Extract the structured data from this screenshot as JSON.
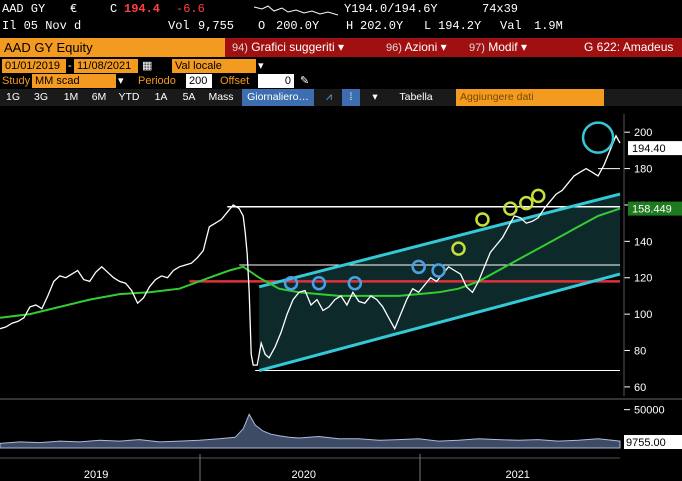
{
  "quote": {
    "ticker": "AAD GY",
    "currency": "€",
    "close_flag": "C",
    "last_price": "194.4",
    "change": "-6.6",
    "trade_date": "Il 05 Nov d",
    "volume_label": "Vol",
    "volume": "9,755",
    "open_label": "O",
    "open": "200.0Y",
    "high_label": "H",
    "high": "202.0Y",
    "low_label": "L",
    "low": "194.2Y",
    "value_label": "Val",
    "value": "1.9M",
    "bid_ask": "Y194.0/194.6Y",
    "size": "74x39"
  },
  "title_bar": {
    "security": "AAD GY Equity",
    "menus": [
      {
        "num": "94)",
        "label": "Grafici suggeriti"
      },
      {
        "num": "96)",
        "label": "Azioni"
      },
      {
        "num": "97)",
        "label": "Modif"
      }
    ],
    "page_id": "G 622: Amadeus"
  },
  "options": {
    "date_from": "01/01/2019",
    "date_to": "11/08/2021",
    "currency_select": "Val locale",
    "study_label": "Study",
    "study_value": "MM scad",
    "period_label": "Periodo",
    "period_value": "200",
    "offset_label": "Offset",
    "offset_value": "0"
  },
  "tabs": {
    "ranges": [
      "1G",
      "3G",
      "1M",
      "6M",
      "YTD",
      "1A",
      "5A",
      "Mass"
    ],
    "frequency": "Giornaliero",
    "table_label": "Tabella",
    "add_data_placeholder": "Aggiungere dati"
  },
  "colors": {
    "price": "#ffffff",
    "moving_average": "#33cc33",
    "channel": "#33c9d6",
    "support": "#e0303a",
    "volume": "#aabbdd",
    "brand_orange": "#f39a21"
  },
  "chart_data": {
    "type": "line",
    "y_ticks": [
      "200",
      "180",
      "160",
      "140",
      "120",
      "100",
      "80",
      "60"
    ],
    "price_last_label": "194.40",
    "ma_last_label": "158.449",
    "volume_ticks": [
      "50000"
    ],
    "volume_last_label": "9755.00",
    "x_labels": [
      "2019",
      "2020",
      "2021"
    ],
    "ylim": [
      55,
      210
    ],
    "series": [
      {
        "key": "price",
        "values": [
          [
            0,
            92
          ],
          [
            3,
            93
          ],
          [
            6,
            95
          ],
          [
            9,
            96
          ],
          [
            12,
            98
          ],
          [
            15,
            104
          ],
          [
            18,
            105
          ],
          [
            21,
            103
          ],
          [
            24,
            110
          ],
          [
            27,
            118
          ],
          [
            30,
            121
          ],
          [
            33,
            120
          ],
          [
            36,
            122
          ],
          [
            39,
            124
          ],
          [
            42,
            119
          ],
          [
            45,
            118
          ],
          [
            48,
            123
          ],
          [
            51,
            126
          ],
          [
            54,
            123
          ],
          [
            57,
            120
          ],
          [
            60,
            118
          ],
          [
            63,
            117
          ],
          [
            66,
            113
          ],
          [
            69,
            106
          ],
          [
            72,
            109
          ],
          [
            75,
            115
          ],
          [
            78,
            119
          ],
          [
            81,
            121
          ],
          [
            84,
            120
          ],
          [
            87,
            124
          ],
          [
            90,
            126
          ],
          [
            93,
            127
          ],
          [
            96,
            128
          ],
          [
            99,
            131
          ],
          [
            102,
            135
          ],
          [
            105,
            148
          ],
          [
            108,
            150
          ],
          [
            111,
            152
          ],
          [
            114,
            156
          ],
          [
            117,
            160
          ],
          [
            120,
            158
          ],
          [
            122,
            154
          ],
          [
            123,
            145
          ],
          [
            124,
            133
          ],
          [
            125,
            112
          ],
          [
            126,
            78
          ],
          [
            127,
            72
          ],
          [
            129,
            72
          ],
          [
            131,
            84
          ],
          [
            133,
            78
          ],
          [
            135,
            76
          ],
          [
            138,
            82
          ],
          [
            141,
            90
          ],
          [
            144,
            100
          ],
          [
            147,
            108
          ],
          [
            150,
            112
          ],
          [
            153,
            113
          ],
          [
            156,
            105
          ],
          [
            159,
            108
          ],
          [
            162,
            102
          ],
          [
            165,
            104
          ],
          [
            168,
            108
          ],
          [
            171,
            110
          ],
          [
            174,
            105
          ],
          [
            177,
            112
          ],
          [
            180,
            107
          ],
          [
            183,
            106
          ],
          [
            186,
            110
          ],
          [
            189,
            108
          ],
          [
            192,
            104
          ],
          [
            195,
            98
          ],
          [
            198,
            92
          ],
          [
            201,
            100
          ],
          [
            204,
            108
          ],
          [
            207,
            114
          ],
          [
            210,
            112
          ],
          [
            213,
            116
          ],
          [
            216,
            120
          ],
          [
            219,
            118
          ],
          [
            222,
            122
          ],
          [
            225,
            126
          ],
          [
            228,
            124
          ],
          [
            231,
            122
          ],
          [
            234,
            115
          ],
          [
            237,
            112
          ],
          [
            240,
            118
          ],
          [
            243,
            126
          ],
          [
            246,
            134
          ],
          [
            249,
            138
          ],
          [
            252,
            142
          ],
          [
            255,
            148
          ],
          [
            258,
            154
          ],
          [
            261,
            153
          ],
          [
            264,
            150
          ],
          [
            267,
            151
          ],
          [
            270,
            153
          ],
          [
            273,
            158
          ],
          [
            276,
            162
          ],
          [
            279,
            166
          ],
          [
            282,
            168
          ],
          [
            285,
            172
          ],
          [
            288,
            176
          ],
          [
            291,
            178
          ],
          [
            294,
            180
          ],
          [
            297,
            178
          ],
          [
            300,
            176
          ],
          [
            303,
            182
          ],
          [
            306,
            190
          ],
          [
            309,
            198
          ],
          [
            311,
            194
          ]
        ]
      },
      {
        "key": "ma",
        "values": [
          [
            0,
            98
          ],
          [
            15,
            100
          ],
          [
            30,
            104
          ],
          [
            45,
            108
          ],
          [
            60,
            111
          ],
          [
            75,
            112
          ],
          [
            90,
            114
          ],
          [
            105,
            120
          ],
          [
            115,
            124
          ],
          [
            122,
            126
          ],
          [
            130,
            120
          ],
          [
            140,
            114
          ],
          [
            150,
            112
          ],
          [
            160,
            111
          ],
          [
            170,
            110
          ],
          [
            180,
            110
          ],
          [
            190,
            110
          ],
          [
            200,
            110
          ],
          [
            210,
            111
          ],
          [
            220,
            112
          ],
          [
            230,
            114
          ],
          [
            240,
            118
          ],
          [
            250,
            124
          ],
          [
            260,
            130
          ],
          [
            270,
            136
          ],
          [
            280,
            142
          ],
          [
            290,
            148
          ],
          [
            300,
            154
          ],
          [
            311,
            158
          ]
        ]
      },
      {
        "key": "volume",
        "values": [
          [
            0,
            6
          ],
          [
            10,
            8
          ],
          [
            20,
            7
          ],
          [
            30,
            9
          ],
          [
            40,
            8
          ],
          [
            50,
            10
          ],
          [
            60,
            9
          ],
          [
            70,
            11
          ],
          [
            80,
            8
          ],
          [
            90,
            9
          ],
          [
            100,
            10
          ],
          [
            110,
            12
          ],
          [
            118,
            14
          ],
          [
            122,
            25
          ],
          [
            125,
            44
          ],
          [
            128,
            30
          ],
          [
            132,
            22
          ],
          [
            136,
            18
          ],
          [
            140,
            16
          ],
          [
            145,
            14
          ],
          [
            150,
            13
          ],
          [
            160,
            15
          ],
          [
            170,
            12
          ],
          [
            180,
            12
          ],
          [
            190,
            10
          ],
          [
            200,
            11
          ],
          [
            210,
            12
          ],
          [
            220,
            9
          ],
          [
            230,
            10
          ],
          [
            240,
            12
          ],
          [
            250,
            11
          ],
          [
            260,
            10
          ],
          [
            270,
            11
          ],
          [
            280,
            9
          ],
          [
            290,
            10
          ],
          [
            300,
            12
          ],
          [
            311,
            9
          ]
        ]
      }
    ],
    "lines": {
      "channel_upper": [
        [
          130,
          115
        ],
        [
          311,
          166
        ]
      ],
      "channel_lower": [
        [
          130,
          69
        ],
        [
          311,
          122
        ]
      ],
      "support": [
        [
          95,
          118
        ],
        [
          311,
          118
        ]
      ],
      "resistance_high": [
        [
          114,
          159
        ],
        [
          311,
          159
        ]
      ],
      "resistance_mid": [
        [
          120,
          127
        ],
        [
          311,
          127
        ]
      ],
      "top_guide": [
        [
          300,
          180
        ],
        [
          311,
          180
        ]
      ],
      "bottom_guide": [
        [
          128,
          69
        ],
        [
          311,
          69
        ]
      ]
    },
    "markers": {
      "blue": [
        [
          146,
          117
        ],
        [
          160,
          117
        ],
        [
          178,
          117
        ],
        [
          210,
          126
        ],
        [
          220,
          124
        ]
      ],
      "yellow": [
        [
          230,
          136
        ],
        [
          242,
          152
        ],
        [
          256,
          158
        ],
        [
          264,
          161
        ],
        [
          270,
          165
        ]
      ],
      "cyan_big": [
        [
          300,
          197
        ]
      ]
    }
  }
}
